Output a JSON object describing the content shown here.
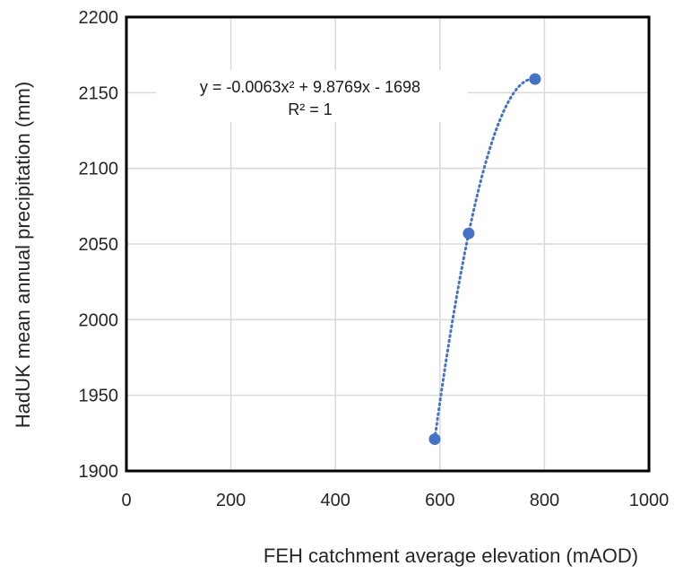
{
  "chart_data": {
    "type": "scatter",
    "xlabel": "FEH catchment average elevation (mAOD)",
    "ylabel": "HadUK mean annual precipitation (mm)",
    "xlim": [
      0,
      1000
    ],
    "ylim": [
      1900,
      2200
    ],
    "x_ticks": [
      0,
      200,
      400,
      600,
      800,
      1000
    ],
    "y_ticks": [
      1900,
      1950,
      2000,
      2050,
      2100,
      2150,
      2200
    ],
    "grid": true,
    "series": [
      {
        "points": [
          {
            "x": 590,
            "y": 1921
          },
          {
            "x": 655,
            "y": 2057
          },
          {
            "x": 782,
            "y": 2159
          }
        ],
        "color": "#4472C4",
        "trendline": {
          "type": "polynomial",
          "order": 2,
          "style": "dotted",
          "equation_text": "y = -0.0063x² + 9.8769x - 1698",
          "r2_text": "R² = 1"
        }
      }
    ]
  }
}
